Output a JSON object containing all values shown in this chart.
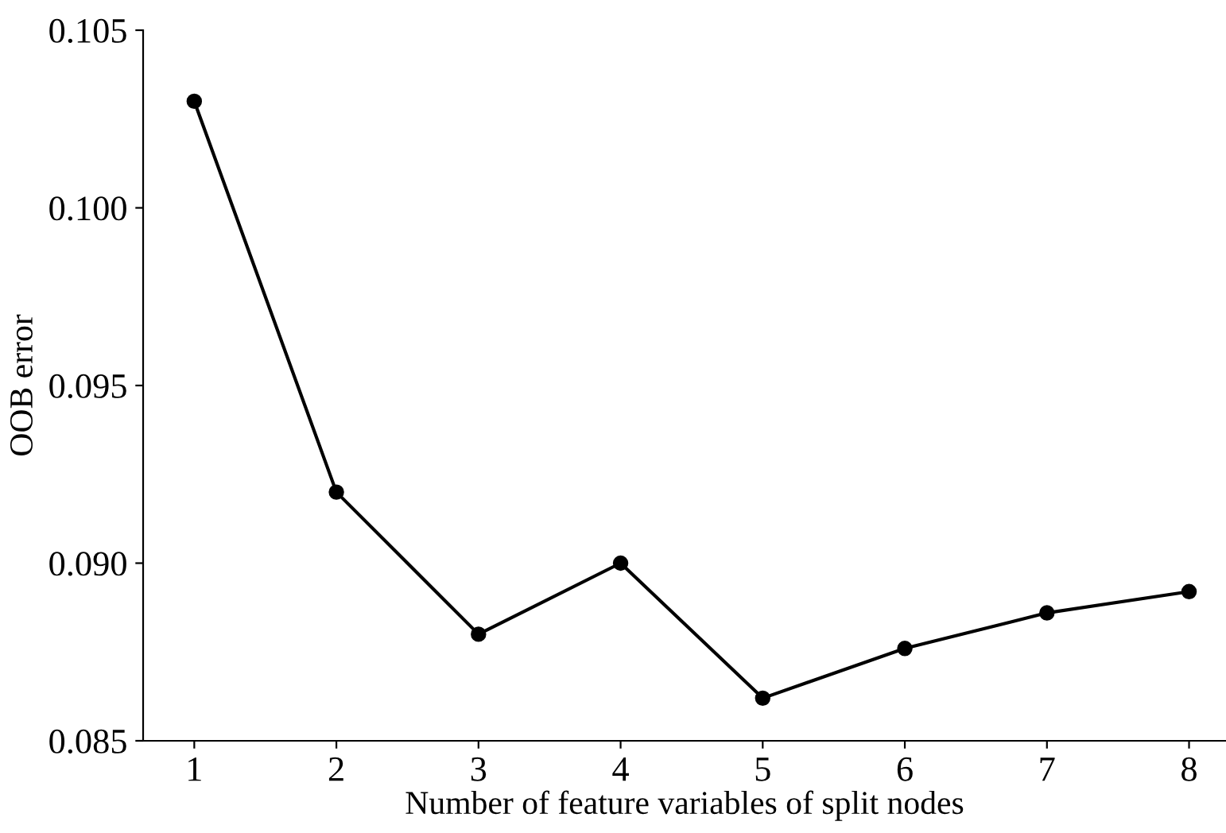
{
  "chart_data": {
    "type": "line",
    "xlabel": "Number of feature variables of split nodes",
    "ylabel": "OOB error",
    "x": [
      1,
      2,
      3,
      4,
      5,
      6,
      7,
      8
    ],
    "series": [
      {
        "color": "#000000",
        "values": [
          0.103,
          0.092,
          0.088,
          0.09,
          0.0862,
          0.0876,
          0.0886,
          0.0892
        ]
      }
    ],
    "xlim": [
      0.64,
      8.26
    ],
    "xticks": [
      1,
      2,
      3,
      4,
      5,
      6,
      7,
      8
    ],
    "ylim": [
      0.085,
      0.105
    ],
    "yticks": [
      {
        "value": 0.085,
        "label": "0.085"
      },
      {
        "value": 0.09,
        "label": "0.090"
      },
      {
        "value": 0.095,
        "label": "0.095"
      },
      {
        "value": 0.1,
        "label": "0.100"
      },
      {
        "value": 0.105,
        "label": "0.105"
      }
    ],
    "marker": "circle",
    "line_style": "solid",
    "grid": false,
    "legend": false
  }
}
